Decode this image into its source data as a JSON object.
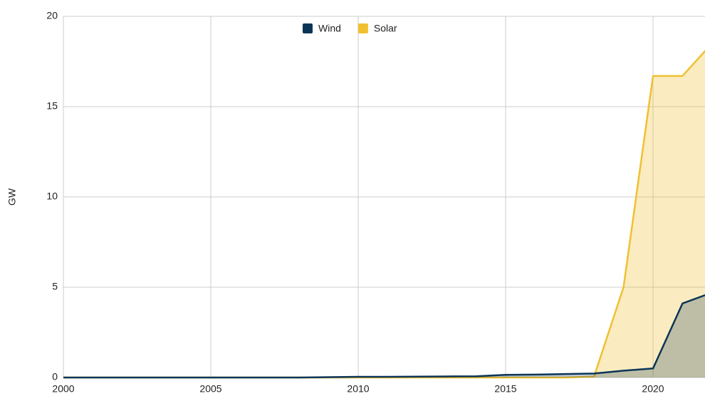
{
  "chart_data": {
    "type": "area",
    "ylabel": "GW",
    "x": [
      2000,
      2001,
      2002,
      2003,
      2004,
      2005,
      2006,
      2007,
      2008,
      2009,
      2010,
      2011,
      2012,
      2013,
      2014,
      2015,
      2016,
      2017,
      2018,
      2019,
      2020,
      2021,
      2022
    ],
    "series": [
      {
        "name": "Wind",
        "color": "#0b3558",
        "values": [
          0,
          0,
          0,
          0,
          0,
          0,
          0,
          0,
          0,
          0.02,
          0.04,
          0.04,
          0.05,
          0.06,
          0.07,
          0.15,
          0.16,
          0.19,
          0.22,
          0.38,
          0.5,
          4.1,
          4.7
        ]
      },
      {
        "name": "Solar",
        "color": "#f0c030",
        "values": [
          0,
          0,
          0,
          0,
          0,
          0,
          0,
          0,
          0,
          0,
          0,
          0,
          0,
          0,
          0,
          0,
          0,
          0,
          0.05,
          5,
          16.7,
          16.7,
          18.5
        ]
      }
    ],
    "xlim": [
      2000,
      2022
    ],
    "xticks": [
      2000,
      2005,
      2010,
      2015,
      2020
    ],
    "ylim": [
      0,
      20
    ],
    "yticks": [
      0,
      5,
      10,
      15,
      20
    ],
    "grid": true,
    "legend": "top"
  }
}
